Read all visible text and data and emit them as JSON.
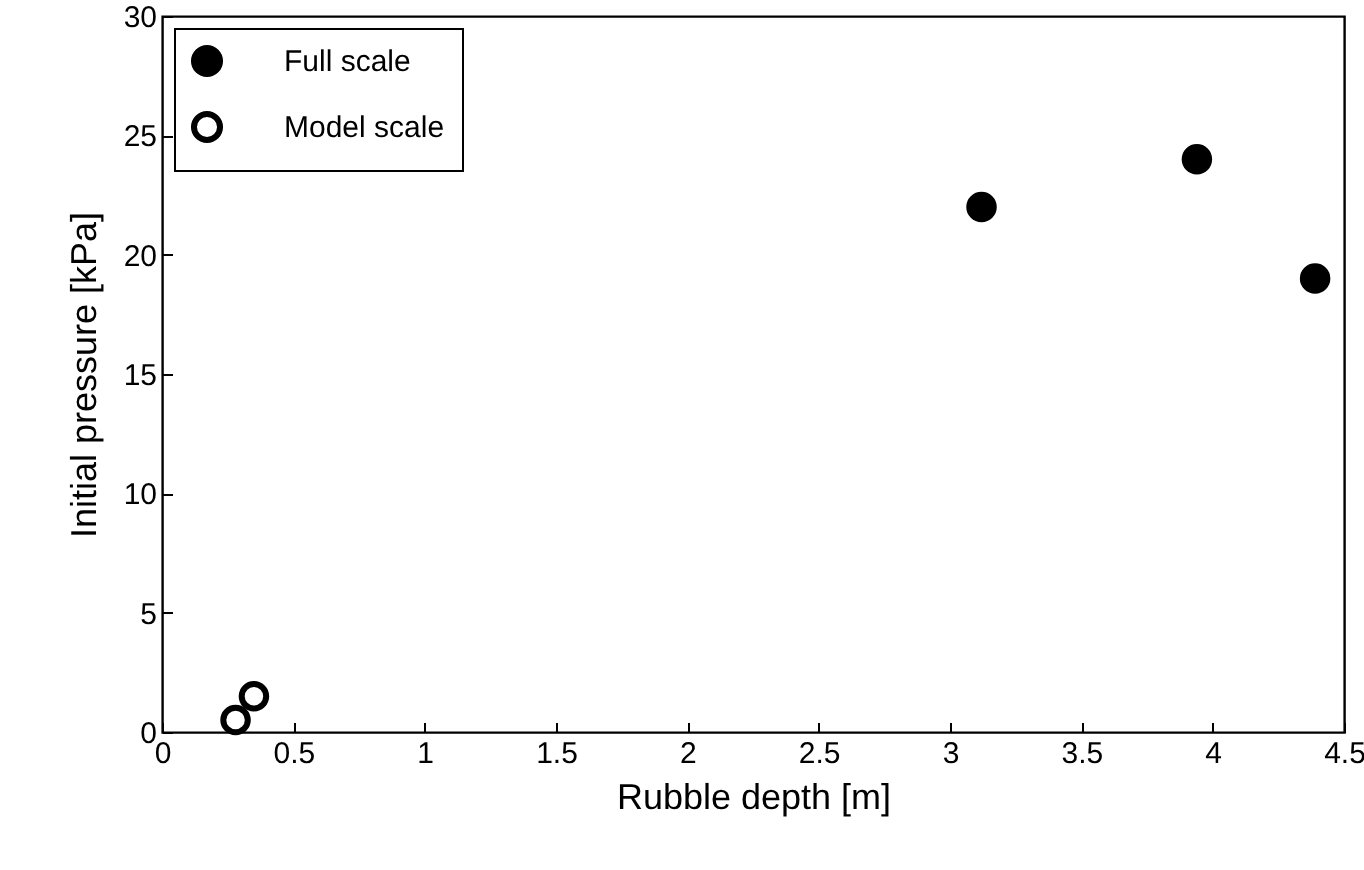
{
  "chart_data": {
    "type": "scatter",
    "xlabel": "Rubble depth [m]",
    "ylabel": "Initial pressure [kPa]",
    "series": [
      {
        "name": "Full scale",
        "color": "#000000",
        "x": [
          3.12,
          3.94,
          4.39
        ],
        "values": [
          22,
          24,
          19
        ]
      },
      {
        "name": "Model scale",
        "color": "#ffffff",
        "x": [
          0.28,
          0.35
        ],
        "values": [
          0.5,
          1.5
        ]
      }
    ],
    "xlim": [
      0,
      4.5
    ],
    "xticks": [
      0,
      0.5,
      1,
      1.5,
      2,
      2.5,
      3,
      3.5,
      4,
      4.5
    ],
    "ylim": [
      0,
      30
    ],
    "yticks": [
      0,
      5,
      10,
      15,
      20,
      25,
      30
    ],
    "grid": false,
    "legend": "top left",
    "marker": "circle"
  }
}
